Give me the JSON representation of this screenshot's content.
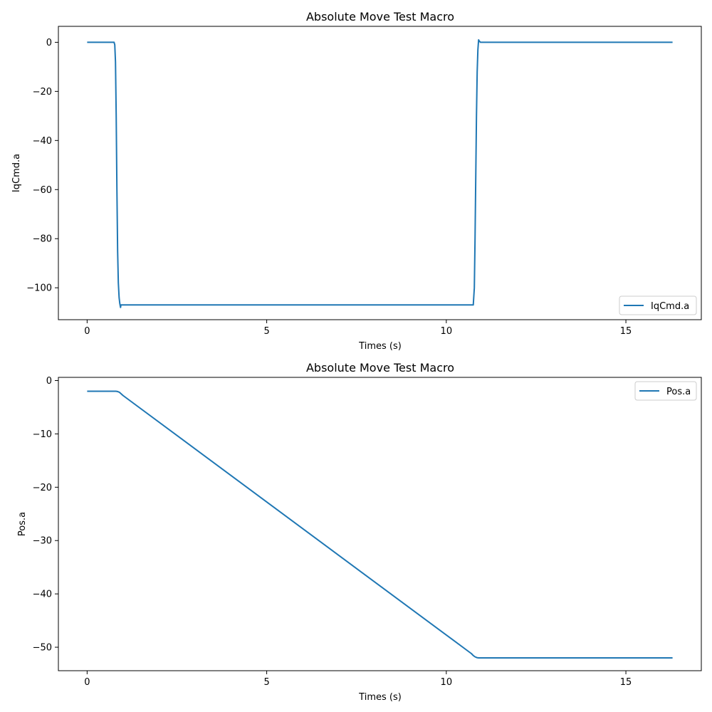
{
  "chart_data": [
    {
      "type": "line",
      "title": "Absolute Move Test Macro",
      "xlabel": "Times (s)",
      "ylabel": "IqCmd.a",
      "xlim": [
        -0.8,
        17.1
      ],
      "ylim": [
        -113,
        6.5
      ],
      "xticks": [
        0,
        5,
        10,
        15
      ],
      "yticks": [
        0,
        -20,
        -40,
        -60,
        -80,
        -100
      ],
      "legend_position": "lower-right",
      "color": "#1f77b4",
      "series": [
        {
          "name": "IqCmd.a",
          "x": [
            0,
            0.75,
            0.77,
            0.79,
            0.81,
            0.83,
            0.85,
            0.87,
            0.89,
            0.91,
            0.93,
            0.94,
            0.96,
            1.0,
            2.0,
            5.0,
            8.0,
            10.75,
            10.78,
            10.8,
            10.82,
            10.84,
            10.86,
            10.88,
            10.9,
            10.92,
            10.95,
            11.0,
            12.0,
            14.0,
            16.3
          ],
          "y": [
            0,
            0,
            -1,
            -8,
            -30,
            -60,
            -85,
            -98,
            -104,
            -106.5,
            -108,
            -107,
            -107,
            -107,
            -107,
            -107,
            -107,
            -107,
            -100,
            -80,
            -55,
            -30,
            -12,
            -3,
            1,
            0.5,
            0,
            0,
            0,
            0,
            0
          ]
        }
      ]
    },
    {
      "type": "line",
      "title": "Absolute Move Test Macro",
      "xlabel": "Times (s)",
      "ylabel": "Pos.a",
      "xlim": [
        -0.8,
        17.1
      ],
      "ylim": [
        -54.4,
        0.6
      ],
      "xticks": [
        0,
        5,
        10,
        15
      ],
      "yticks": [
        0,
        -10,
        -20,
        -30,
        -40,
        -50
      ],
      "legend_position": "upper-right",
      "color": "#1f77b4",
      "series": [
        {
          "name": "Pos.a",
          "x": [
            0,
            0.8,
            0.85,
            0.9,
            0.95,
            1.0,
            10.7,
            10.75,
            10.8,
            10.85,
            10.9,
            11.0,
            13.0,
            16.3
          ],
          "y": [
            -2,
            -2,
            -2.05,
            -2.2,
            -2.5,
            -2.8,
            -51.2,
            -51.55,
            -51.8,
            -51.95,
            -52,
            -52,
            -52,
            -52
          ]
        }
      ]
    }
  ]
}
